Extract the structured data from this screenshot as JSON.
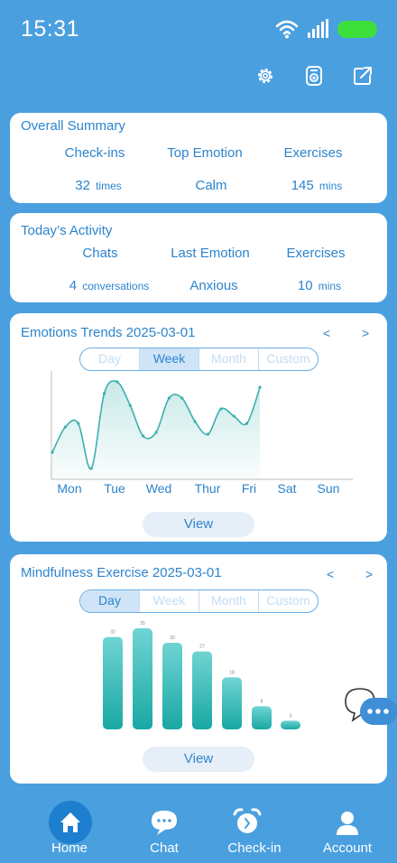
{
  "status": {
    "time": "15:31"
  },
  "colors": {
    "brand": "#4a9fdf",
    "accent": "#2c84cc",
    "battery": "#3de03a",
    "chart_line": "#3bb0ad",
    "bar_top": "#6fd4d3",
    "bar_bottom": "#19a8a4"
  },
  "toolbar": {
    "icons": [
      "settings-gear-icon",
      "badge-icon",
      "share-icon"
    ]
  },
  "overall": {
    "title": "Overall Summary",
    "stats": [
      {
        "label": "Check-ins",
        "value": "32",
        "unit": "times"
      },
      {
        "label": "Top Emotion",
        "value": "Calm",
        "unit": ""
      },
      {
        "label": "Exercises",
        "value": "145",
        "unit": "mins"
      }
    ]
  },
  "today": {
    "title": "Today’s Activity",
    "stats": [
      {
        "label": "Chats",
        "value": "4",
        "unit": "conversations"
      },
      {
        "label": "Last Emotion",
        "value": "Anxious",
        "unit": ""
      },
      {
        "label": "Exercises",
        "value": "10",
        "unit": "mins"
      }
    ]
  },
  "emotions": {
    "title": "Emotions Trends 2025-03-01",
    "prev": "<",
    "next": ">",
    "tabs": [
      "Day",
      "Week",
      "Month",
      "Custom"
    ],
    "active_tab": "Week",
    "view_label": "View"
  },
  "mindfulness": {
    "title": "Mindfulness Exercise 2025-03-01",
    "prev": "<",
    "next": ">",
    "tabs": [
      "Day",
      "Week",
      "Month",
      "Custom"
    ],
    "active_tab": "Day",
    "view_label": "View"
  },
  "chart_data": [
    {
      "type": "area",
      "categories": [
        "Mon",
        "Tue",
        "Wed",
        "Thur",
        "Fri",
        "Sat",
        "Sun"
      ],
      "x": [
        0,
        0.25,
        0.5,
        0.75,
        1,
        1.25,
        1.5,
        1.75,
        2,
        2.25,
        2.5,
        2.75,
        3,
        3.25,
        3.5,
        3.75,
        4
      ],
      "values": [
        30,
        58,
        62,
        12,
        95,
        108,
        82,
        48,
        52,
        90,
        90,
        64,
        50,
        78,
        70,
        62,
        102
      ],
      "ylim": [
        0,
        120
      ],
      "grid": false
    },
    {
      "type": "bar",
      "values": [
        32,
        35,
        30,
        27,
        18,
        8,
        3
      ],
      "data_labels": [
        "32",
        "35",
        "30",
        "27",
        "18",
        "8",
        "3"
      ],
      "ylim": [
        0,
        35
      ]
    }
  ],
  "nav": {
    "items": [
      {
        "label": "Home",
        "icon": "home-icon",
        "active": true
      },
      {
        "label": "Chat",
        "icon": "chat-bubble-icon",
        "active": false
      },
      {
        "label": "Check-in",
        "icon": "alarm-clock-icon",
        "active": false
      },
      {
        "label": "Account",
        "icon": "user-icon",
        "active": false
      }
    ]
  }
}
